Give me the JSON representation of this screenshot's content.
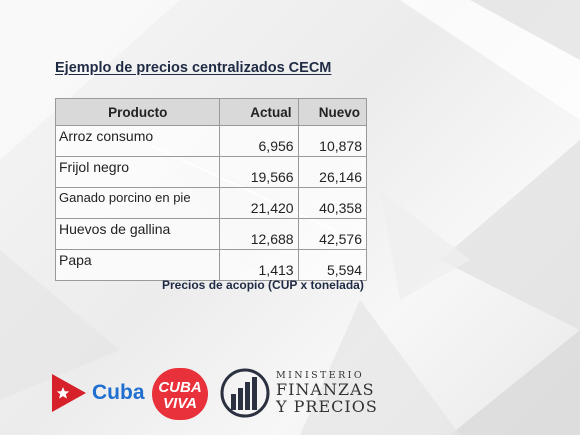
{
  "title": "Ejemplo de precios centralizados CECM",
  "table": {
    "headers": [
      "Producto",
      "Actual",
      "Nuevo"
    ],
    "rows": [
      {
        "producto": "Arroz consumo",
        "actual": "6,956",
        "nuevo": "10,878"
      },
      {
        "producto": "Frijol negro",
        "actual": "19,566",
        "nuevo": "26,146"
      },
      {
        "producto": "Ganado porcino en pie",
        "actual": "21,420",
        "nuevo": "40,358"
      },
      {
        "producto": "Huevos de gallina",
        "actual": "12,688",
        "nuevo": "42,576"
      },
      {
        "producto": "Papa",
        "actual": "1,413",
        "nuevo": "5,594"
      }
    ]
  },
  "note": "Precios de acopio (CUP x tonelada)",
  "logos": {
    "cuba": "Cuba",
    "cuba_viva_top": "CUBA",
    "cuba_viva_bottom": "VIVA",
    "ministerio_line1": "MINISTERIO",
    "ministerio_line2": "FINANZAS",
    "ministerio_line3": "Y PRECIOS"
  },
  "colors": {
    "title": "#1f2a44",
    "header_bg": "#d9d9d9",
    "cuba_blue": "#1e6fd0",
    "flag_red": "#d6202a",
    "viva_red": "#e8313a",
    "mfp_dark": "#2b3140"
  }
}
